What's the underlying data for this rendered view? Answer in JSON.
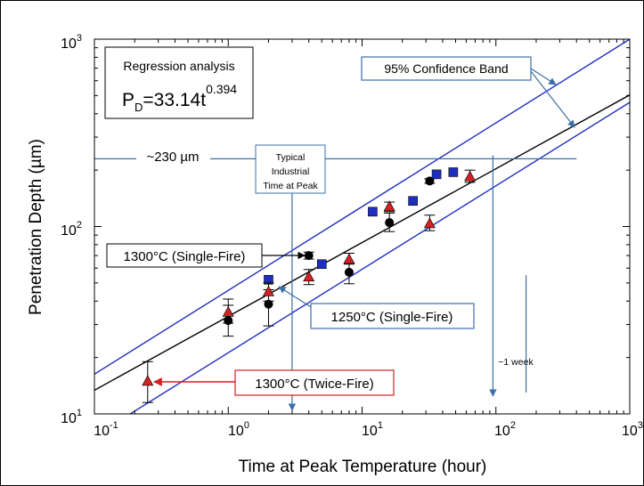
{
  "chart_data": {
    "type": "scatter",
    "xscale": "log",
    "yscale": "log",
    "xlim": [
      0.1,
      1000
    ],
    "ylim": [
      10,
      1000
    ],
    "xlabel": "Time at Peak Temperature (hour)",
    "ylabel": "Penetration Depth (µm)",
    "grid": false,
    "x_ticks": [
      {
        "base": "10",
        "exp": "-1",
        "value": 0.1
      },
      {
        "base": "10",
        "exp": "0",
        "value": 1
      },
      {
        "base": "10",
        "exp": "1",
        "value": 10
      },
      {
        "base": "10",
        "exp": "2",
        "value": 100
      },
      {
        "base": "10",
        "exp": "3",
        "value": 1000
      }
    ],
    "y_ticks": [
      {
        "base": "10",
        "exp": "1",
        "value": 10
      },
      {
        "base": "10",
        "exp": "2",
        "value": 100
      },
      {
        "base": "10",
        "exp": "3",
        "value": 1000
      }
    ],
    "series": [
      {
        "name": "1300°C (Single-Fire)",
        "marker": "circle",
        "color": "#000000",
        "points": [
          {
            "x": 1,
            "y": 31.5,
            "lo": 26,
            "hi": 38
          },
          {
            "x": 2,
            "y": 38.5,
            "lo": 29.5,
            "hi": 46
          },
          {
            "x": 4,
            "y": 70,
            "lo": 67,
            "hi": 73
          },
          {
            "x": 8,
            "y": 57,
            "lo": 49.5,
            "hi": 64
          },
          {
            "x": 16,
            "y": 105,
            "lo": 94,
            "hi": 118
          },
          {
            "x": 32,
            "y": 175,
            "lo": 170,
            "hi": 180
          }
        ]
      },
      {
        "name": "1250°C (Single-Fire)",
        "marker": "square",
        "color": "#1e2fbf",
        "points": [
          {
            "x": 2,
            "y": 52
          },
          {
            "x": 5,
            "y": 63
          },
          {
            "x": 12,
            "y": 120
          },
          {
            "x": 24,
            "y": 137
          },
          {
            "x": 36,
            "y": 190
          },
          {
            "x": 48,
            "y": 195
          }
        ]
      },
      {
        "name": "1300°C (Twice-Fire)",
        "marker": "triangle",
        "color": "#d42020",
        "points": [
          {
            "x": 0.25,
            "y": 15,
            "lo": 11.5,
            "hi": 19
          },
          {
            "x": 1,
            "y": 35,
            "lo": 30.5,
            "hi": 41
          },
          {
            "x": 2,
            "y": 45,
            "lo": 40,
            "hi": 50
          },
          {
            "x": 4,
            "y": 54,
            "lo": 49,
            "hi": 59
          },
          {
            "x": 8,
            "y": 67,
            "lo": 63,
            "hi": 72
          },
          {
            "x": 16,
            "y": 128,
            "lo": 120,
            "hi": 135
          },
          {
            "x": 32,
            "y": 104,
            "lo": 95,
            "hi": 115
          },
          {
            "x": 64,
            "y": 185,
            "lo": 172,
            "hi": 200
          }
        ]
      }
    ],
    "regression": {
      "a": 33.14,
      "b": 0.394,
      "color": "#000000"
    },
    "confidence_band": {
      "color": "#1e2fbf",
      "upper": {
        "x": [
          0.1,
          1000
        ],
        "y": [
          16.3,
          1000
        ]
      },
      "lower": {
        "x": [
          0.1,
          1000
        ],
        "y": [
          7.6,
          460
        ]
      }
    },
    "reference_lines": {
      "depth_230": {
        "y": 230,
        "x_from": 0.1,
        "x_to": 400
      },
      "time_typical": {
        "x": 3,
        "y_from": 170,
        "y_to": 10
      },
      "time_100h": {
        "x": 95,
        "y_from": 240,
        "y_to": 10
      },
      "week": {
        "x": 168,
        "y_from": 55,
        "y_to": 13
      }
    }
  },
  "labels": {
    "regression_title": "Regression analysis",
    "equation_P": "P",
    "equation_sub": "D",
    "equation_rhs": "=33.14t",
    "equation_exp": "0.394",
    "confidence_band": "95% Confidence Band",
    "depth_230": "~230 µm",
    "typical_line1": "Typical",
    "typical_line2": "Industrial",
    "typical_line3": "Time at Peak",
    "single_fire_1300": "1300°C (Single-Fire)",
    "single_fire_1250": "1250°C (Single-Fire)",
    "twice_fire_1300": "1300°C (Twice-Fire)",
    "week": "~1 week"
  },
  "colors": {
    "annotation_blue": "#3e6fa8",
    "series_blue": "#1e2fbf",
    "red": "#d42020",
    "black": "#000000"
  }
}
